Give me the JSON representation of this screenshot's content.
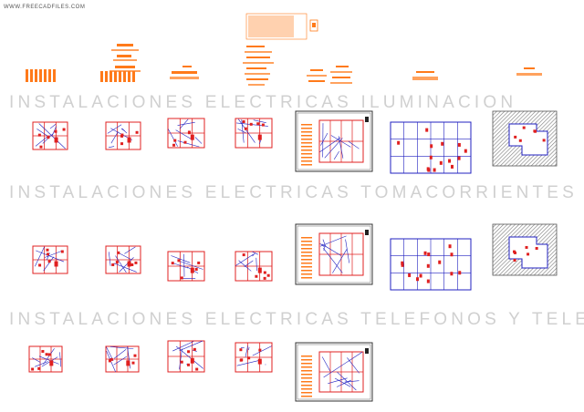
{
  "watermark": "WWW.FREECADFILES.COM",
  "sections": [
    {
      "title": "INSTALACIONES   ELECTRICAS   ILUMINACION"
    },
    {
      "title": "INSTALACIONES   ELECTRICAS   TOMACORRIENTES"
    },
    {
      "title": "INSTALACIONES   ELECTRICAS   TELEFONOS   Y   TELEVISION"
    }
  ],
  "colors": {
    "background": "#ffffff",
    "title_text": "#d0d0d0",
    "walls": "#e02020",
    "wiring": "#2020c0",
    "legend_orange": "#ff7a1a",
    "hatch": "#7a7a7a"
  }
}
